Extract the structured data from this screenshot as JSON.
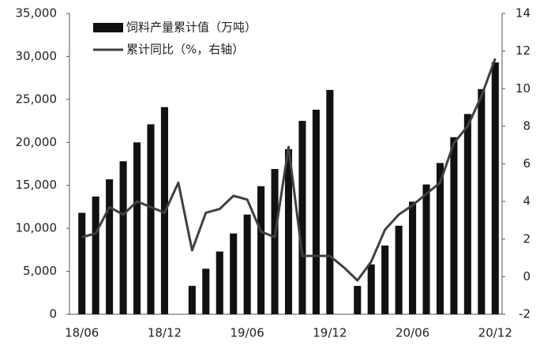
{
  "chart_data": {
    "type": "bar-line",
    "categories": [
      "18/06",
      null,
      null,
      null,
      null,
      null,
      "18/12",
      null,
      null,
      null,
      null,
      null,
      "19/06",
      null,
      null,
      null,
      null,
      null,
      "19/12",
      null,
      null,
      null,
      null,
      null,
      "20/06",
      null,
      null,
      null,
      null,
      null,
      "20/12"
    ],
    "series": [
      {
        "name": "饲料产量累计值（万吨）",
        "type": "bar",
        "color": "#111111",
        "axis": "y",
        "values": [
          11800,
          13700,
          15700,
          17800,
          20000,
          22100,
          24100,
          null,
          3300,
          5300,
          7300,
          9400,
          11600,
          14900,
          16900,
          19200,
          22500,
          23800,
          26100,
          null,
          3300,
          5800,
          8000,
          10300,
          13100,
          15100,
          17600,
          20600,
          23300,
          26200,
          29300
        ]
      },
      {
        "name": "累计同比（%，右轴）",
        "type": "line",
        "color": "#404040",
        "axis": "y2",
        "values": [
          2.1,
          2.3,
          3.7,
          3.3,
          4.0,
          3.7,
          3.4,
          5.0,
          1.4,
          3.4,
          3.6,
          4.3,
          4.1,
          2.4,
          2.1,
          6.9,
          1.1,
          1.1,
          1.1,
          0.5,
          -0.2,
          0.8,
          2.5,
          3.3,
          3.8,
          4.4,
          5.0,
          7.1,
          8.0,
          9.6,
          11.6
        ]
      }
    ],
    "ylim": [
      0,
      35000
    ],
    "yticks": [
      0,
      {
        "value": 5000,
        "label": "5,000"
      },
      {
        "value": 10000,
        "label": "10,000"
      },
      {
        "value": 15000,
        "label": "15,000"
      },
      {
        "value": 20000,
        "label": "20,000"
      },
      {
        "value": 25000,
        "label": "25,000"
      },
      {
        "value": 30000,
        "label": "30,000"
      },
      {
        "value": 35000,
        "label": "35,000"
      }
    ],
    "y2lim": [
      -2,
      14
    ],
    "y2ticks": [
      -2,
      0,
      2,
      4,
      6,
      8,
      10,
      12,
      14
    ],
    "legend": "top-left"
  }
}
